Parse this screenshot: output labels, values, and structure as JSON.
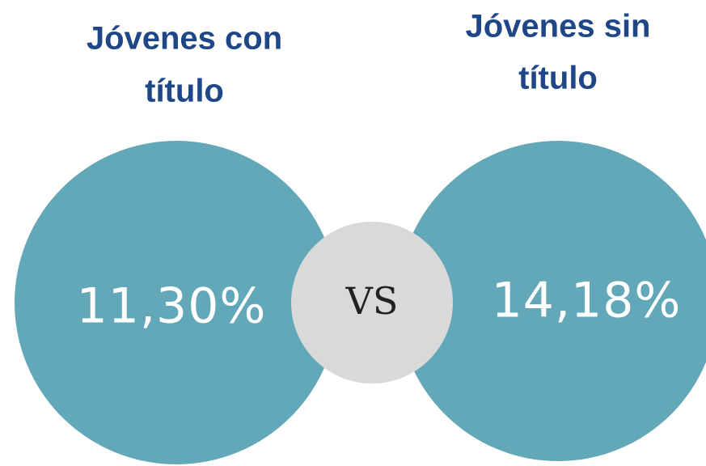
{
  "items": [
    {
      "title": [
        "Jóvenes con",
        "título"
      ],
      "value": "11,30%"
    },
    {
      "title": [
        "Jóvenes sin",
        "título"
      ],
      "value": "14,18%"
    }
  ],
  "separator": "VS"
}
